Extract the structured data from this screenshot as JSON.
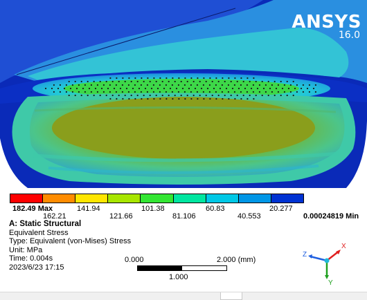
{
  "brand": {
    "name": "ANSYS",
    "version": "16.0"
  },
  "legend": {
    "colors": [
      "#ff0000",
      "#ff8c00",
      "#ffe600",
      "#a8e600",
      "#33e633",
      "#00e6a0",
      "#00c8e6",
      "#0096e6",
      "#0032d2"
    ],
    "top_labels": [
      "182.49 Max",
      "141.94",
      "101.38",
      "60.83",
      "20.277"
    ],
    "bottom_labels": [
      "162.21",
      "121.66",
      "81.106",
      "40.553"
    ],
    "min_label": "0.00024819 Min"
  },
  "info": {
    "title": "A: Static Structural",
    "line1": "Equivalent Stress",
    "line2": "Type: Equivalent (von-Mises) Stress",
    "line3": "Unit: MPa",
    "line4": "Time: 0.004s",
    "line5": "2023/6/23 17:15"
  },
  "scale": {
    "left": "0.000",
    "right": "2.000 (mm)",
    "middle": "1.000"
  },
  "triad": {
    "x": "X",
    "y": "Y",
    "z": "Z"
  }
}
